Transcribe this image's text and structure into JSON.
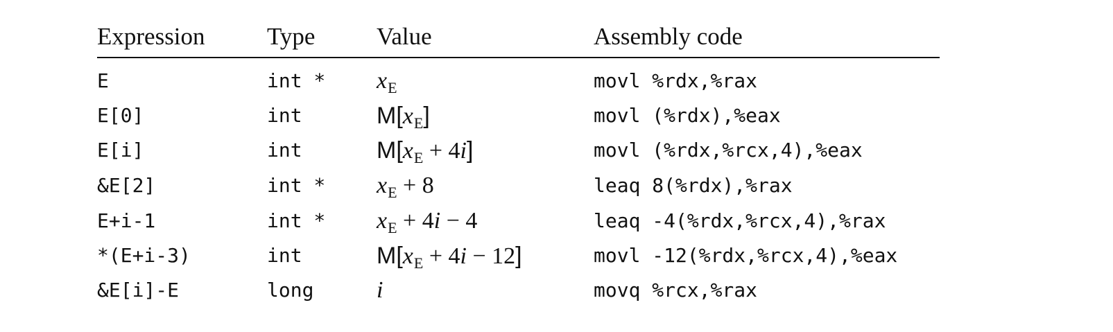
{
  "table": {
    "headers": {
      "expression": "Expression",
      "type": "Type",
      "value": "Value",
      "assembly": "Assembly code"
    },
    "rows": [
      {
        "expression": "E",
        "type": "int *",
        "value_parts": [
          {
            "text": "x",
            "style": "it"
          },
          {
            "text": "E",
            "style": "sub"
          }
        ],
        "assembly": "movl %rdx,%rax"
      },
      {
        "expression": "E[0]",
        "type": "int",
        "value_parts": [
          {
            "text": "M[",
            "style": "sans"
          },
          {
            "text": "x",
            "style": "it"
          },
          {
            "text": "E",
            "style": "sub"
          },
          {
            "text": "]",
            "style": "sans"
          }
        ],
        "assembly": "movl (%rdx),%eax"
      },
      {
        "expression": "E[i]",
        "type": "int",
        "value_parts": [
          {
            "text": "M[",
            "style": "sans"
          },
          {
            "text": "x",
            "style": "it"
          },
          {
            "text": "E",
            "style": "sub"
          },
          {
            "text": " + 4",
            "style": "plain"
          },
          {
            "text": "i",
            "style": "it"
          },
          {
            "text": "]",
            "style": "sans"
          }
        ],
        "assembly": "movl (%rdx,%rcx,4),%eax"
      },
      {
        "expression": "&E[2]",
        "type": "int *",
        "value_parts": [
          {
            "text": "x",
            "style": "it"
          },
          {
            "text": "E",
            "style": "sub"
          },
          {
            "text": " + 8",
            "style": "plain"
          }
        ],
        "assembly": "leaq 8(%rdx),%rax"
      },
      {
        "expression": "E+i-1",
        "type": "int *",
        "value_parts": [
          {
            "text": "x",
            "style": "it"
          },
          {
            "text": "E",
            "style": "sub"
          },
          {
            "text": " + 4",
            "style": "plain"
          },
          {
            "text": "i",
            "style": "it"
          },
          {
            "text": " − 4",
            "style": "plain"
          }
        ],
        "assembly": "leaq -4(%rdx,%rcx,4),%rax"
      },
      {
        "expression": "*(E+i-3)",
        "type": "int",
        "value_parts": [
          {
            "text": "M[",
            "style": "sans"
          },
          {
            "text": "x",
            "style": "it"
          },
          {
            "text": "E",
            "style": "sub"
          },
          {
            "text": " + 4",
            "style": "plain"
          },
          {
            "text": "i",
            "style": "it"
          },
          {
            "text": " − 12",
            "style": "plain"
          },
          {
            "text": "]",
            "style": "sans"
          }
        ],
        "assembly": "movl -12(%rdx,%rcx,4),%eax"
      },
      {
        "expression": "&E[i]-E",
        "type": "long",
        "value_parts": [
          {
            "text": "i",
            "style": "it"
          }
        ],
        "assembly": "movq %rcx,%rax"
      }
    ]
  }
}
